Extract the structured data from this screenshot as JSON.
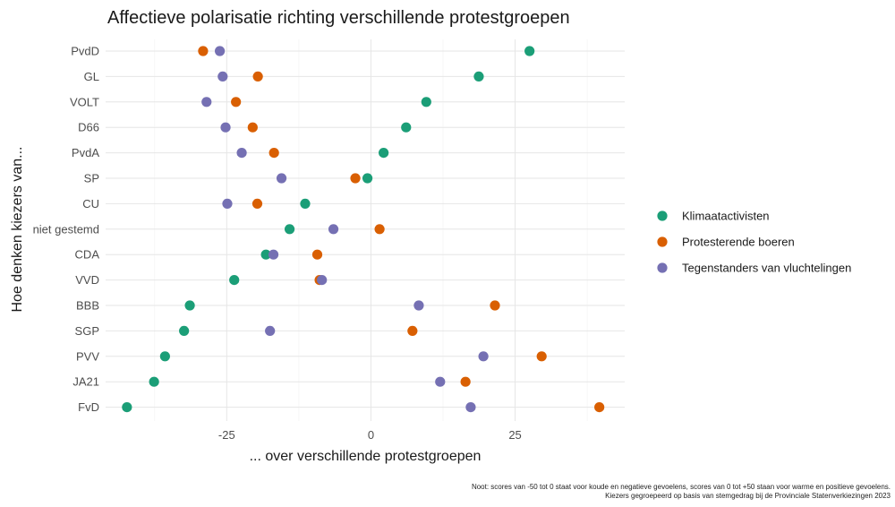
{
  "chart_data": {
    "type": "scatter",
    "title": "Affectieve polarisatie richting verschillende protestgroepen",
    "xlabel": "... over verschillende protestgroepen",
    "ylabel": "Hoe denken kiezers van...",
    "xlim": [
      -46,
      44
    ],
    "xticks": [
      -25,
      0,
      25
    ],
    "xtick_labels": [
      "-25",
      "0",
      "25"
    ],
    "grid": true,
    "legend_position": "right",
    "categories": [
      "PvdD",
      "GL",
      "VOLT",
      "D66",
      "PvdA",
      "SP",
      "CU",
      "niet gestemd",
      "CDA",
      "VVD",
      "BBB",
      "SGP",
      "PVV",
      "JA21",
      "FvD"
    ],
    "series": [
      {
        "name": "Klimaatactivisten",
        "color": "#1b9e77",
        "values": [
          27.5,
          18.7,
          9.6,
          6.1,
          2.2,
          -0.6,
          -11.4,
          -14.1,
          -18.2,
          -23.7,
          -31.4,
          -32.4,
          -35.7,
          -37.6,
          -42.3
        ]
      },
      {
        "name": "Protesterende boeren",
        "color": "#d95f02",
        "values": [
          -29.1,
          -19.6,
          -23.4,
          -20.5,
          -16.8,
          -2.7,
          -19.7,
          1.5,
          -9.3,
          -8.9,
          21.5,
          7.2,
          29.6,
          16.4,
          39.6
        ]
      },
      {
        "name": "Tegenstanders van vluchtelingen",
        "color": "#7570b3",
        "values": [
          -26.2,
          -25.7,
          -28.5,
          -25.2,
          -22.4,
          -15.5,
          -24.9,
          -6.5,
          -16.9,
          -8.5,
          8.3,
          -17.5,
          19.5,
          12.0,
          17.3
        ]
      }
    ],
    "note_lines": [
      "Noot: scores van -50 tot 0 staat voor koude en negatieve gevoelens, scores van 0 tot +50 staan voor warme en positieve gevoelens.",
      "Kiezers gegroepeerd op basis van stemgedrag bij de Provinciale Statenverkiezingen 2023"
    ]
  }
}
